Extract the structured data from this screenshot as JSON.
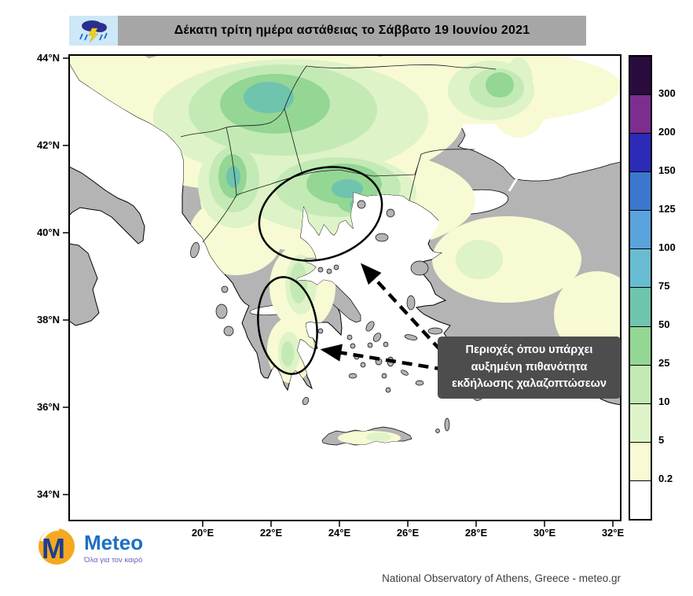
{
  "header": {
    "title": "Δέκατη τρίτη ημέρα αστάθειας το Σάββατο 19 Ιουνίου 2021"
  },
  "map": {
    "land_color": "#b4b4b4",
    "sea_color": "#ffffff",
    "lat_labels": [
      "44°N",
      "42°N",
      "40°N",
      "38°N",
      "36°N",
      "34°N"
    ],
    "lon_labels": [
      "20°E",
      "22°E",
      "24°E",
      "26°E",
      "28°E",
      "30°E",
      "32°E"
    ],
    "annotation_lines": [
      "Περιοχές όπου υπάρχει",
      "αυξημένη πιθανότητα",
      "εκδήλωσης χαλαζοπτώσεων"
    ]
  },
  "colorbar": {
    "labels": [
      "300",
      "200",
      "150",
      "125",
      "100",
      "75",
      "50",
      "25",
      "10",
      "5",
      "0.2"
    ],
    "colors": [
      "#2a0b3d",
      "#7b2e8e",
      "#2b2bb8",
      "#3b77cf",
      "#5ba3dc",
      "#68bcd1",
      "#6fc4ae",
      "#94d694",
      "#c3eab5",
      "#def3c7",
      "#f7fad3",
      "#ffffff"
    ]
  },
  "footer": {
    "logo_text": "Meteo",
    "logo_tagline": "Όλα για τον καιρό",
    "attribution": "National Observatory of Athens, Greece - meteo.gr"
  }
}
